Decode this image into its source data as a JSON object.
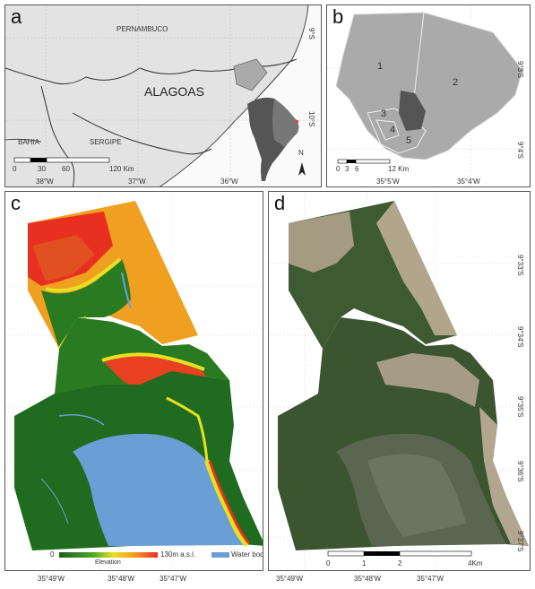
{
  "panel_a": {
    "label": "a",
    "states": {
      "pernambuco": "PERNAMBUCO",
      "alagoas": "ALAGOAS",
      "bahia": "BAHIA",
      "sergipe": "SERGIPE"
    },
    "lat_labels": [
      "9°S",
      "10°S"
    ],
    "lon_labels": [
      "38°W",
      "37°W",
      "36°W"
    ],
    "scale": {
      "ticks": [
        "0",
        "30",
        "60"
      ],
      "end": "120 Km"
    },
    "north": "N"
  },
  "panel_b": {
    "label": "b",
    "regions": [
      "1",
      "2",
      "3",
      "4",
      "5"
    ],
    "lat_labels": [
      "9°3'S",
      "9°4'S"
    ],
    "lon_labels": [
      "35°5'W",
      "35°4'W"
    ],
    "scale": {
      "ticks": [
        "0",
        "3",
        "6"
      ],
      "end": "12 Km"
    }
  },
  "panel_c": {
    "label": "c",
    "lon_labels": [
      "35°49'W",
      "35°48'W",
      "35°47'W"
    ],
    "legend": {
      "min": "0",
      "max": "130m a.s.l.",
      "title": "Elevation",
      "water": "Water body"
    },
    "colors": {
      "low": "#1e6b1e",
      "mid": "#e8e020",
      "high": "#e83020",
      "water": "#6a9fd6"
    }
  },
  "panel_d": {
    "label": "d",
    "lat_labels": [
      "9°33'S",
      "9°34'S",
      "9°35'S",
      "9°36'S",
      "9°37'S"
    ],
    "lon_labels": [
      "35°49'W",
      "35°48'W",
      "35°47'W"
    ],
    "scale": {
      "ticks": [
        "0",
        "1",
        "2"
      ],
      "end": "4Km"
    }
  }
}
